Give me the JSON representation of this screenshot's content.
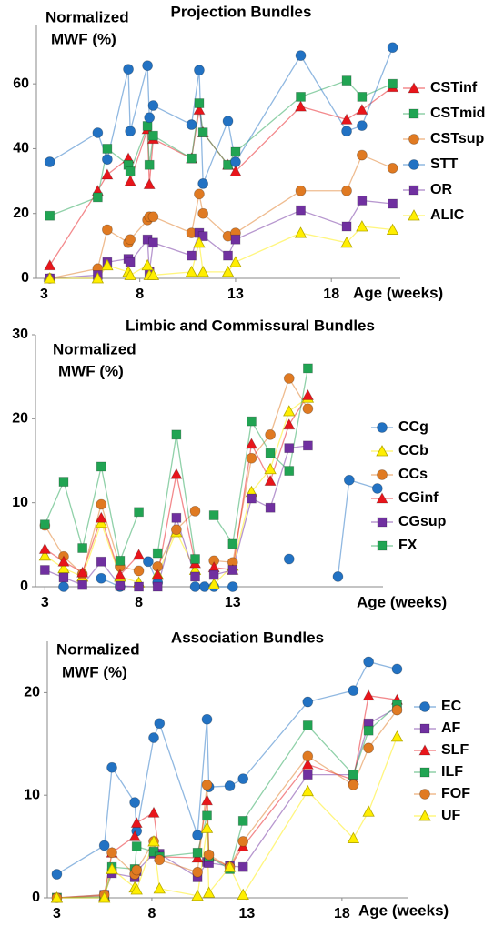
{
  "chart_data": [
    {
      "type": "line",
      "title": "Projection Bundles",
      "ylabel": [
        "Normalized",
        "MWF (%)"
      ],
      "xlabel": "Age (weeks)",
      "x": [
        3.3,
        5.8,
        6.3,
        7.4,
        7.5,
        8.4,
        8.5,
        8.7,
        10.7,
        11.1,
        11.3,
        12.6,
        13.0,
        16.4,
        18.8,
        19.6,
        21.2
      ],
      "xlim": [
        2.6,
        21.6
      ],
      "xticks": [
        3,
        8,
        13,
        18
      ],
      "ylim": [
        0,
        78
      ],
      "yticks": [
        0,
        20,
        40,
        60
      ],
      "series": [
        {
          "name": "CSTinf",
          "color": "#e8151b",
          "marker": "triangle",
          "values": [
            4,
            27,
            32,
            37,
            30,
            46,
            29,
            43,
            37,
            52,
            45,
            35,
            33,
            53,
            49,
            52,
            59
          ]
        },
        {
          "name": "CSTmid",
          "color": "#21a453",
          "marker": "square",
          "values": [
            19.3,
            25,
            40,
            35,
            33,
            47,
            35,
            44,
            37,
            54,
            45,
            35,
            39,
            56,
            61,
            56,
            60
          ]
        },
        {
          "name": "CSTsup",
          "color": "#e07a22",
          "marker": "circle",
          "values": [
            0,
            3,
            15,
            11,
            12,
            18,
            19,
            19,
            14,
            26,
            20,
            13,
            14,
            27,
            27,
            38,
            34
          ]
        },
        {
          "name": "STT",
          "color": "#2272c3",
          "marker": "circle",
          "values": [
            35.9,
            44.9,
            36.7,
            64.5,
            45.4,
            65.6,
            49.6,
            53.3,
            47.4,
            64.2,
            29.2,
            48.5,
            35.9,
            68.7,
            45.4,
            47.1,
            71.2
          ]
        },
        {
          "name": "OR",
          "color": "#7030a0",
          "marker": "square",
          "values": [
            0,
            1,
            5,
            6,
            5,
            12,
            2,
            11,
            7,
            14,
            13,
            7,
            12,
            21,
            16,
            24,
            23
          ]
        },
        {
          "name": "ALIC",
          "color": "#ffee00",
          "marker": "triangle",
          "values": [
            0,
            0,
            4,
            2,
            1,
            4,
            1,
            1,
            2,
            11,
            2,
            2,
            5,
            14,
            11,
            16,
            15
          ]
        }
      ]
    },
    {
      "type": "line",
      "title": "Limbic and Commissural Bundles",
      "ylabel": [
        "Normalized",
        "MWF (%)"
      ],
      "xlabel": "Age (weeks)",
      "x": [
        3,
        4,
        5,
        6,
        7,
        8,
        8.5,
        9,
        10,
        11,
        11.5,
        12,
        13,
        14,
        15,
        16,
        17,
        18.6,
        19.2,
        20.7
      ],
      "xlim": [
        2.5,
        21
      ],
      "xticks": [
        3,
        8,
        13
      ],
      "ylim": [
        0,
        30
      ],
      "yticks": [
        0,
        10,
        20,
        30
      ],
      "series": [
        {
          "name": "CCg",
          "color": "#2272c3",
          "marker": "circle",
          "values": [
            null,
            0,
            null,
            1.0,
            0,
            null,
            3.0,
            0.5,
            null,
            0,
            0,
            0,
            0,
            null,
            null,
            3.3,
            null,
            1.2,
            12.7,
            11.7
          ]
        },
        {
          "name": "CCb",
          "color": "#ffee00",
          "marker": "triangle",
          "values": [
            3.7,
            2.2,
            1.2,
            7.6,
            1.2,
            0.5,
            null,
            1.5,
            6.5,
            2.0,
            null,
            0.3,
            2.5,
            11.3,
            14.0,
            20.9,
            22.5,
            null,
            null,
            null
          ]
        },
        {
          "name": "CCs",
          "color": "#e07a22",
          "marker": "circle",
          "values": [
            7.3,
            3.6,
            1.5,
            9.8,
            2.4,
            1.9,
            null,
            2.4,
            6.8,
            9.0,
            null,
            3.1,
            2.9,
            15.3,
            18.1,
            24.8,
            21.2,
            null,
            null,
            null
          ]
        },
        {
          "name": "CGinf",
          "color": "#e8151b",
          "marker": "triangle",
          "values": [
            4.5,
            3.0,
            1.7,
            8.2,
            1.4,
            3.8,
            null,
            1.4,
            13.4,
            2.8,
            null,
            2.3,
            2.0,
            17.0,
            12.6,
            19.3,
            22.8,
            null,
            null,
            null
          ]
        },
        {
          "name": "CGsup",
          "color": "#7030a0",
          "marker": "square",
          "values": [
            2.0,
            1.1,
            0.2,
            3.0,
            0.1,
            0,
            null,
            0,
            8.2,
            1.2,
            null,
            1.4,
            2.0,
            10.5,
            9.4,
            16.5,
            16.8,
            null,
            null,
            null
          ]
        },
        {
          "name": "FX",
          "color": "#21a453",
          "marker": "square",
          "values": [
            7.4,
            12.5,
            4.6,
            14.3,
            3.1,
            8.9,
            null,
            4.0,
            18.1,
            3.3,
            null,
            8.5,
            5.1,
            19.7,
            15.9,
            13.8,
            26,
            null,
            null,
            null
          ]
        }
      ]
    },
    {
      "type": "line",
      "title": "Association Bundles",
      "ylabel": [
        "Normalized",
        "MWF (%)"
      ],
      "xlabel": "Age (weeks)",
      "x": [
        3,
        5.5,
        5.9,
        7.1,
        7.2,
        8.1,
        8.4,
        10.4,
        10.9,
        11.0,
        12.1,
        12.8,
        16.2,
        18.6,
        19.4,
        20.9
      ],
      "xlim": [
        2.5,
        21.5
      ],
      "xticks": [
        3,
        8,
        13,
        18
      ],
      "ylim": [
        0,
        25
      ],
      "yticks": [
        0,
        10,
        20
      ],
      "series": [
        {
          "name": "EC",
          "color": "#2272c3",
          "marker": "circle",
          "values": [
            2.3,
            5.1,
            12.7,
            9.3,
            6.5,
            15.6,
            17.0,
            6.1,
            17.4,
            10.8,
            10.9,
            11.6,
            19.1,
            20.2,
            23.0,
            22.3
          ]
        },
        {
          "name": "AF",
          "color": "#7030a0",
          "marker": "square",
          "values": [
            0,
            0.3,
            2.4,
            2.0,
            2.6,
            4.3,
            4.3,
            2.0,
            3.5,
            3.4,
            3.1,
            3.0,
            12.0,
            12.0,
            17.0,
            18.5
          ]
        },
        {
          "name": "SLF",
          "color": "#e8151b",
          "marker": "triangle",
          "values": [
            0,
            0.2,
            4.4,
            6.0,
            7.3,
            8.3,
            4.0,
            3.9,
            9.5,
            4.0,
            3.0,
            5.0,
            13.0,
            11.5,
            19.7,
            19.3
          ]
        },
        {
          "name": "ILF",
          "color": "#21a453",
          "marker": "square",
          "values": [
            0,
            0.1,
            3.0,
            2.8,
            5.0,
            4.5,
            4.0,
            4.4,
            8.0,
            4.0,
            2.8,
            7.5,
            16.8,
            12.0,
            16.3,
            18.8
          ]
        },
        {
          "name": "FOF",
          "color": "#e07a22",
          "marker": "circle",
          "values": [
            0,
            0.3,
            4.4,
            2.3,
            2.7,
            5.5,
            3.7,
            2.5,
            11.0,
            4.2,
            3.0,
            5.5,
            13.8,
            11.0,
            14.6,
            18.3
          ]
        },
        {
          "name": "UF",
          "color": "#ffee00",
          "marker": "triangle",
          "values": [
            0,
            0,
            2.8,
            1.0,
            0.8,
            5.5,
            0.9,
            0.2,
            6.8,
            0.5,
            3.0,
            0.3,
            10.4,
            5.8,
            8.4,
            15.7
          ]
        }
      ]
    }
  ]
}
